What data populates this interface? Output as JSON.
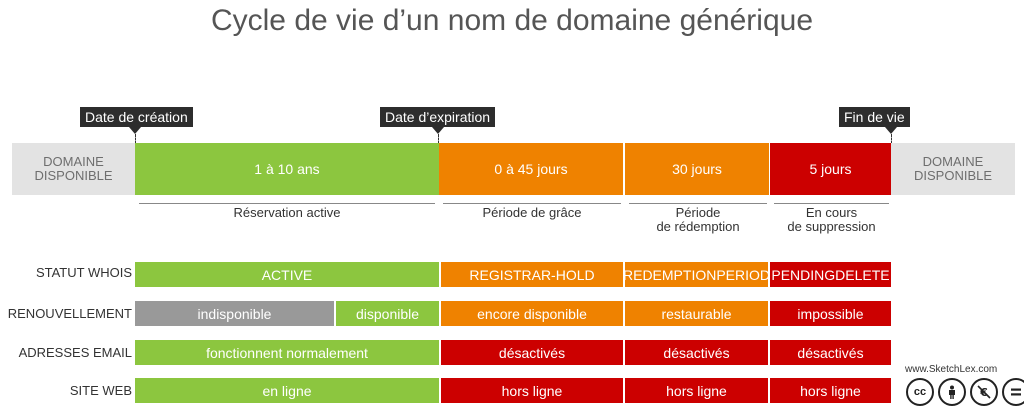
{
  "title": "Cycle de vie d’un nom de domaine générique",
  "markers": {
    "creation": "Date de création",
    "expiration": "Date d’expiration",
    "end": "Fin de vie"
  },
  "timeline": {
    "start": "DOMAINE\nDISPONIBLE",
    "end": "DOMAINE\nDISPONIBLE",
    "phases": [
      "1 à 10 ans",
      "0 à 45 jours",
      "30 jours",
      "5 jours"
    ]
  },
  "phase_labels": [
    "Réservation active",
    "Période de grâce",
    "Période\nde rédemption",
    "En cours\nde suppression"
  ],
  "rows": {
    "whois": {
      "label": "STATUT WHOIS",
      "cells": [
        "ACTIVE",
        "REGISTRAR-HOLD",
        "REDEMPTIONPERIOD",
        "PENDINGDELETE"
      ]
    },
    "renewal": {
      "label": "RENOUVELLEMENT",
      "cells": [
        "indisponible",
        "disponible",
        "encore disponible",
        "restaurable",
        "impossible"
      ]
    },
    "email": {
      "label": "ADRESSES EMAIL",
      "cells": [
        "fonctionnent normalement",
        "désactivés",
        "désactivés",
        "désactivés"
      ]
    },
    "web": {
      "label": "SITE WEB",
      "cells": [
        "en ligne",
        "hors ligne",
        "hors ligne",
        "hors ligne"
      ]
    }
  },
  "credit": {
    "site": "www.SketchLex.com",
    "icons": [
      "cc-icon",
      "by-icon",
      "nc-icon",
      "nd-icon"
    ]
  },
  "colors": {
    "green": "#8cc63f",
    "orange": "#ef8200",
    "red": "#cc0000",
    "grey": "#999999"
  }
}
